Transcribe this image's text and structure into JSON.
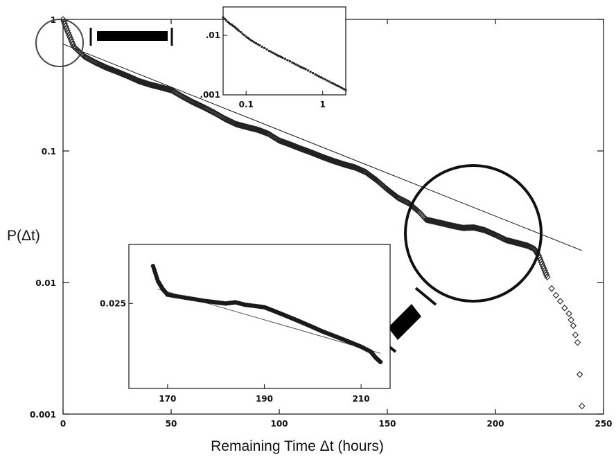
{
  "chart_data": {
    "type": "scatter",
    "xlabel": "Remaining Time Δt (hours)",
    "ylabel": "P(Δt)",
    "xlim": [
      0,
      250
    ],
    "ylim": [
      0.001,
      1
    ],
    "y_scale": "log",
    "x_ticks": [
      "0",
      "50",
      "100",
      "150",
      "200",
      "250"
    ],
    "y_ticks": [
      "0.001",
      "0.01",
      "0.1",
      "1"
    ],
    "grid": false,
    "series": [
      {
        "marker": "open-diamond",
        "points": [
          [
            0,
            1.0
          ],
          [
            2,
            0.82
          ],
          [
            5,
            0.62
          ],
          [
            10,
            0.52
          ],
          [
            15,
            0.47
          ],
          [
            20,
            0.43
          ],
          [
            25,
            0.4
          ],
          [
            30,
            0.37
          ],
          [
            35,
            0.34
          ],
          [
            40,
            0.32
          ],
          [
            45,
            0.305
          ],
          [
            50,
            0.29
          ],
          [
            55,
            0.26
          ],
          [
            60,
            0.235
          ],
          [
            65,
            0.215
          ],
          [
            70,
            0.195
          ],
          [
            75,
            0.175
          ],
          [
            80,
            0.16
          ],
          [
            85,
            0.152
          ],
          [
            90,
            0.145
          ],
          [
            95,
            0.135
          ],
          [
            100,
            0.12
          ],
          [
            105,
            0.112
          ],
          [
            110,
            0.104
          ],
          [
            115,
            0.097
          ],
          [
            120,
            0.09
          ],
          [
            125,
            0.084
          ],
          [
            130,
            0.079
          ],
          [
            135,
            0.075
          ],
          [
            140,
            0.069
          ],
          [
            145,
            0.06
          ],
          [
            150,
            0.051
          ],
          [
            155,
            0.044
          ],
          [
            160,
            0.04
          ],
          [
            165,
            0.034
          ],
          [
            168,
            0.03
          ],
          [
            172,
            0.029
          ],
          [
            176,
            0.028
          ],
          [
            180,
            0.027
          ],
          [
            185,
            0.026
          ],
          [
            190,
            0.0262
          ],
          [
            195,
            0.025
          ],
          [
            200,
            0.023
          ],
          [
            205,
            0.021
          ],
          [
            210,
            0.02
          ],
          [
            215,
            0.019
          ],
          [
            218,
            0.018
          ],
          [
            220,
            0.016
          ],
          [
            224,
            0.011
          ],
          [
            226,
            0.009
          ],
          [
            228,
            0.008
          ],
          [
            230,
            0.0072
          ],
          [
            232,
            0.0064
          ],
          [
            234,
            0.0058
          ],
          [
            235,
            0.0052
          ],
          [
            236,
            0.0047
          ],
          [
            237,
            0.004
          ],
          [
            238,
            0.0035
          ],
          [
            239,
            0.002
          ],
          [
            240,
            0.00115
          ]
        ]
      }
    ],
    "fit_line": {
      "style": "thin-solid",
      "points": [
        [
          0,
          0.65
        ],
        [
          240,
          0.0175
        ]
      ]
    },
    "annotations": [
      "circle around top-left start of the data",
      "circle around the 170-210 hour region",
      "magnification bars leading to each inset"
    ],
    "insets": [
      {
        "position": "top-center",
        "x_scale": "log",
        "y_scale": "log",
        "xlim": [
          0.05,
          2
        ],
        "ylim": [
          0.001,
          0.03
        ],
        "x_ticks": [
          "0.1",
          "1"
        ],
        "y_ticks": [
          ".001",
          ".01"
        ],
        "points": [
          [
            0.05,
            0.02
          ],
          [
            0.06,
            0.016
          ],
          [
            0.07,
            0.014
          ],
          [
            0.08,
            0.012
          ],
          [
            0.1,
            0.0095
          ],
          [
            0.12,
            0.008
          ],
          [
            0.15,
            0.0068
          ],
          [
            0.2,
            0.0055
          ],
          [
            0.25,
            0.0047
          ],
          [
            0.3,
            0.0042
          ],
          [
            0.4,
            0.0035
          ],
          [
            0.5,
            0.003
          ],
          [
            0.6,
            0.0027
          ],
          [
            0.8,
            0.0022
          ],
          [
            1.0,
            0.0019
          ],
          [
            1.3,
            0.0016
          ],
          [
            1.6,
            0.0014
          ],
          [
            2.0,
            0.0012
          ]
        ]
      },
      {
        "position": "bottom-center",
        "xlim": [
          162,
          216
        ],
        "x_ticks": [
          "170",
          "190",
          "210"
        ],
        "y_ticks": [
          "0.025"
        ],
        "points": [
          [
            167,
            0.032
          ],
          [
            168,
            0.029
          ],
          [
            169,
            0.0275
          ],
          [
            170,
            0.0265
          ],
          [
            172,
            0.0262
          ],
          [
            175,
            0.0258
          ],
          [
            178,
            0.0254
          ],
          [
            180,
            0.0252
          ],
          [
            182,
            0.025
          ],
          [
            184,
            0.0252
          ],
          [
            186,
            0.0248
          ],
          [
            188,
            0.0246
          ],
          [
            190,
            0.0244
          ],
          [
            192,
            0.0238
          ],
          [
            194,
            0.0232
          ],
          [
            196,
            0.0226
          ],
          [
            198,
            0.022
          ],
          [
            200,
            0.0214
          ],
          [
            202,
            0.0208
          ],
          [
            204,
            0.0203
          ],
          [
            206,
            0.0198
          ],
          [
            208,
            0.0193
          ],
          [
            210,
            0.0188
          ],
          [
            212,
            0.0182
          ],
          [
            213,
            0.0175
          ],
          [
            214,
            0.017
          ]
        ],
        "fit_line": [
          [
            168,
            0.0275
          ],
          [
            214,
            0.018
          ]
        ]
      }
    ]
  }
}
